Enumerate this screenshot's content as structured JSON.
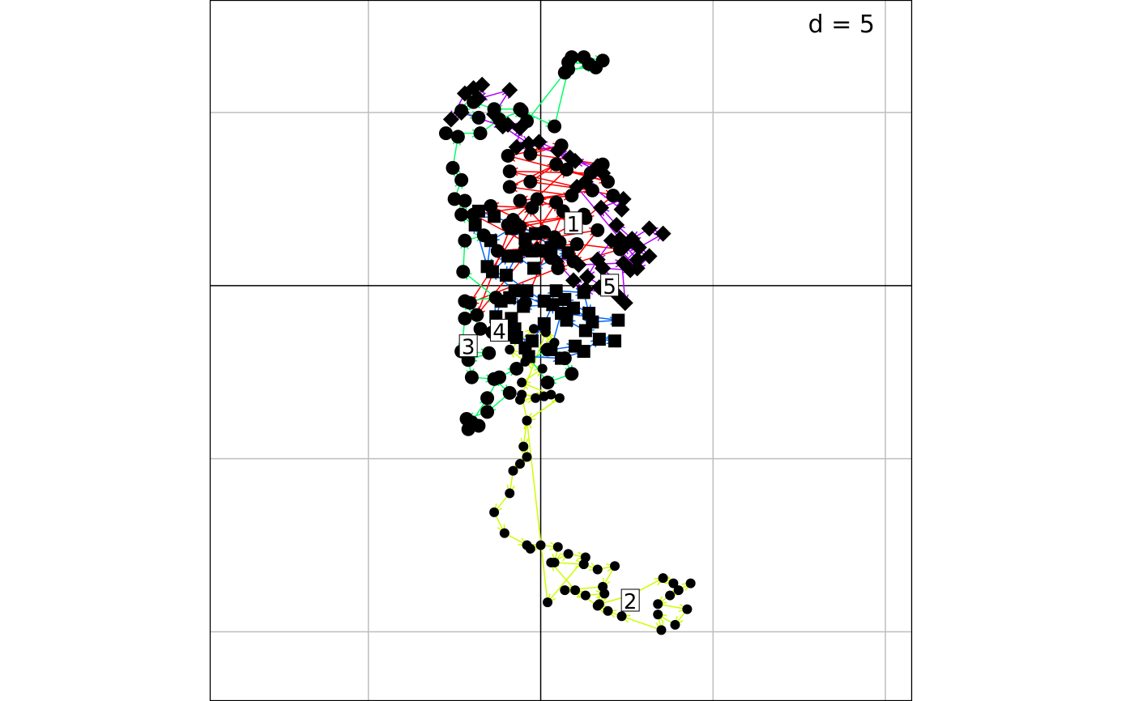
{
  "chart_data": {
    "type": "scatter",
    "subtype": "trajectory",
    "scale_label": "d = 5",
    "grid": true,
    "grid_color": "#bebebe",
    "axes_color": "#000000",
    "point_color": "#000000",
    "xlim": [
      -19.2,
      21.5
    ],
    "ylim": [
      -24,
      16.5
    ],
    "gridlines_x": [
      -10,
      0,
      10,
      20
    ],
    "gridlines_y": [
      -20,
      -10,
      0,
      10
    ],
    "groups": [
      {
        "label": "1",
        "color": "#ff0000",
        "marker": "circle",
        "label_pos": [
          1.9,
          3.6
        ],
        "points": [
          [
            -0.9,
            -1.0
          ],
          [
            1.3,
            4.3
          ],
          [
            -0.2,
            5.0
          ],
          [
            1.8,
            5.2
          ],
          [
            -1.8,
            5.7
          ],
          [
            0.9,
            7.0
          ],
          [
            -0.6,
            6.0
          ],
          [
            3.0,
            5.5
          ],
          [
            -1.2,
            4.9
          ],
          [
            1.1,
            2.5
          ],
          [
            -1.2,
            3.4
          ],
          [
            2.5,
            4.1
          ],
          [
            -1.9,
            3.5
          ],
          [
            0.6,
            1.6
          ],
          [
            -2.5,
            2.0
          ],
          [
            2.1,
            2.4
          ],
          [
            4.6,
            2.1
          ],
          [
            1.0,
            1.0
          ],
          [
            -4.1,
            -1.0
          ],
          [
            -0.5,
            4.5
          ],
          [
            -2.9,
            4.6
          ],
          [
            0.8,
            2.8
          ],
          [
            3.3,
            3.2
          ],
          [
            1.9,
            1.4
          ],
          [
            0.2,
            3.1
          ],
          [
            -3.7,
            -1.7
          ],
          [
            -1.6,
            3.8
          ],
          [
            1.5,
            6.7
          ],
          [
            3.9,
            6.0
          ],
          [
            -1.9,
            7.5
          ],
          [
            1.2,
            8.1
          ],
          [
            -0.6,
            7.6
          ],
          [
            3.6,
            7.0
          ],
          [
            2.9,
            6.5
          ],
          [
            -1.8,
            6.6
          ],
          [
            4.2,
            5.2
          ],
          [
            2.6,
            3.9
          ],
          [
            -0.9,
            2.1
          ],
          [
            0.9,
            4.8
          ],
          [
            -3.9,
            4.1
          ],
          [
            0.1,
            2.0
          ]
        ]
      },
      {
        "label": "2",
        "color": "#ccff00",
        "marker": "circle_small",
        "label_pos": [
          5.2,
          -18.2
        ],
        "points": [
          [
            0.6,
            -6.3
          ],
          [
            -1.1,
            -5.6
          ],
          [
            0.1,
            -4.8
          ],
          [
            -0.9,
            -4.4
          ],
          [
            -1.8,
            -3.7
          ],
          [
            -0.4,
            -2.5
          ],
          [
            0.8,
            -3.3
          ],
          [
            0.3,
            -2.7
          ],
          [
            -1.2,
            -6.6
          ],
          [
            -0.3,
            -6.5
          ],
          [
            1.1,
            -6.5
          ],
          [
            -0.8,
            -7.8
          ],
          [
            -1.0,
            -9.3
          ],
          [
            -0.8,
            -9.9
          ],
          [
            -1.2,
            -10.3
          ],
          [
            -1.6,
            -10.7
          ],
          [
            -1.8,
            -12.0
          ],
          [
            -2.7,
            -13.1
          ],
          [
            -2.1,
            -14.3
          ],
          [
            -0.8,
            -15.0
          ],
          [
            -0.6,
            -15.2
          ],
          [
            0.0,
            -15.0
          ],
          [
            1.0,
            -15.1
          ],
          [
            0.8,
            -16.0
          ],
          [
            2.5,
            -16.1
          ],
          [
            3.3,
            -16.4
          ],
          [
            4.3,
            -16.2
          ],
          [
            3.6,
            -17.4
          ],
          [
            1.4,
            -17.6
          ],
          [
            2.6,
            -17.9
          ],
          [
            3.7,
            -17.8
          ],
          [
            3.4,
            -18.4
          ],
          [
            5.2,
            -17.9
          ],
          [
            7.1,
            -16.9
          ],
          [
            7.7,
            -17.2
          ],
          [
            8.0,
            -17.6
          ],
          [
            8.7,
            -17.2
          ],
          [
            7.5,
            -17.9
          ],
          [
            6.8,
            -18.4
          ],
          [
            8.5,
            -18.7
          ],
          [
            7.8,
            -19.6
          ],
          [
            6.8,
            -19.0
          ],
          [
            7.0,
            -19.9
          ],
          [
            4.7,
            -19.1
          ],
          [
            3.9,
            -18.8
          ],
          [
            3.3,
            -18.5
          ],
          [
            2.0,
            -17.6
          ],
          [
            0.6,
            -16.0
          ],
          [
            1.6,
            -15.5
          ],
          [
            2.6,
            -15.7
          ],
          [
            0.4,
            -18.3
          ],
          [
            -0.8,
            -7.8
          ],
          [
            -1.1,
            -6.3
          ],
          [
            0.2,
            -6.4
          ]
        ]
      },
      {
        "label": "3",
        "color": "#00ff66",
        "marker": "circle",
        "label_pos": [
          -4.2,
          -3.5
        ],
        "points": [
          [
            -4.4,
            -1.9
          ],
          [
            -4.6,
            -3.8
          ],
          [
            -3.0,
            -3.9
          ],
          [
            -4.2,
            -4.3
          ],
          [
            -4.0,
            -5.3
          ],
          [
            -2.7,
            -5.4
          ],
          [
            -1.8,
            -6.2
          ],
          [
            -3.1,
            -7.3
          ],
          [
            -4.3,
            -7.7
          ],
          [
            -3.6,
            -8.1
          ],
          [
            -4.2,
            -8.3
          ],
          [
            -4.0,
            -7.9
          ],
          [
            -3.1,
            -6.5
          ],
          [
            -2.4,
            -5.3
          ],
          [
            -1.4,
            -4.8
          ],
          [
            0.4,
            -3.7
          ],
          [
            1.4,
            -4.2
          ],
          [
            1.8,
            -5.1
          ],
          [
            0.4,
            -5.6
          ],
          [
            -1.6,
            -2.9
          ],
          [
            -2.8,
            -2.7
          ],
          [
            -3.5,
            -2.5
          ],
          [
            -4.4,
            -0.9
          ],
          [
            -2.6,
            -0.7
          ],
          [
            -4.5,
            0.8
          ],
          [
            -4.4,
            2.6
          ],
          [
            -3.3,
            2.9
          ],
          [
            -4.6,
            4.1
          ],
          [
            -4.4,
            4.9
          ],
          [
            -5.0,
            5.0
          ],
          [
            -4.6,
            6.1
          ],
          [
            -5.1,
            6.8
          ],
          [
            -4.8,
            8.6
          ],
          [
            -5.5,
            8.8
          ],
          [
            -3.5,
            8.8
          ],
          [
            -2.4,
            9.6
          ],
          [
            -1.1,
            10.1
          ],
          [
            0.8,
            9.2
          ],
          [
            1.6,
            12.5
          ],
          [
            3.2,
            12.6
          ],
          [
            1.8,
            13.2
          ],
          [
            1.6,
            12.9
          ],
          [
            2.8,
            12.8
          ],
          [
            2.5,
            13.2
          ],
          [
            3.6,
            13.0
          ],
          [
            1.4,
            12.3
          ],
          [
            -0.8,
            9.5
          ],
          [
            -1.2,
            10.2
          ],
          [
            -2.7,
            10.2
          ],
          [
            -3.9,
            10.6
          ],
          [
            -4.6,
            10.1
          ],
          [
            -3.6,
            9.7
          ]
        ]
      },
      {
        "label": "4",
        "color": "#0066ff",
        "marker": "square",
        "label_pos": [
          -2.4,
          -2.6
        ],
        "points": [
          [
            -1.7,
            -1.9
          ],
          [
            -1.4,
            -3.0
          ],
          [
            -0.5,
            -3.2
          ],
          [
            0.2,
            -2.2
          ],
          [
            0.7,
            -1.1
          ],
          [
            -1.0,
            -1.2
          ],
          [
            -1.8,
            -0.7
          ],
          [
            -2.3,
            -0.9
          ],
          [
            -2.6,
            -1.8
          ],
          [
            -1.5,
            -2.5
          ],
          [
            -0.9,
            -3.6
          ],
          [
            -0.7,
            -4.1
          ],
          [
            1.2,
            -4.2
          ],
          [
            2.5,
            -3.8
          ],
          [
            3.4,
            -3.1
          ],
          [
            4.3,
            -3.2
          ],
          [
            2.6,
            -2.6
          ],
          [
            1.5,
            -2.0
          ],
          [
            1.9,
            -1.3
          ],
          [
            3.0,
            -2.1
          ],
          [
            4.5,
            -2.0
          ],
          [
            1.2,
            -1.6
          ],
          [
            -1.5,
            -0.3
          ],
          [
            -2.8,
            0.8
          ],
          [
            -1.9,
            1.7
          ],
          [
            -0.5,
            2.0
          ],
          [
            -0.9,
            2.7
          ],
          [
            -1.7,
            3.3
          ],
          [
            -2.9,
            2.6
          ],
          [
            -3.1,
            1.1
          ],
          [
            -3.8,
            3.5
          ],
          [
            -3.6,
            4.3
          ],
          [
            -2.7,
            4.0
          ],
          [
            -1.5,
            3.5
          ],
          [
            -0.3,
            3.0
          ],
          [
            0.6,
            2.2
          ],
          [
            1.6,
            1.9
          ],
          [
            -0.4,
            1.0
          ],
          [
            -1.4,
            1.7
          ],
          [
            -2.0,
            0.6
          ],
          [
            -0.8,
            -0.3
          ],
          [
            0.2,
            -0.9
          ],
          [
            0.9,
            -0.3
          ],
          [
            2.5,
            -0.4
          ],
          [
            2.8,
            -1.6
          ],
          [
            1.4,
            -0.8
          ],
          [
            0.6,
            -3.7
          ],
          [
            2.0,
            -3.5
          ]
        ]
      },
      {
        "label": "5",
        "color": "#b200ff",
        "marker": "diamond",
        "label_pos": [
          4.0,
          0.0
        ],
        "points": [
          [
            4.0,
            0.0
          ],
          [
            3.6,
            1.0
          ],
          [
            5.2,
            0.9
          ],
          [
            5.6,
            1.5
          ],
          [
            4.9,
            2.3
          ],
          [
            6.3,
            1.7
          ],
          [
            5.6,
            1.0
          ],
          [
            4.1,
            2.6
          ],
          [
            3.3,
            1.5
          ],
          [
            2.7,
            0.5
          ],
          [
            4.5,
            -0.6
          ],
          [
            2.6,
            -0.2
          ],
          [
            1.9,
            0.3
          ],
          [
            0.9,
            1.4
          ],
          [
            -0.2,
            2.1
          ],
          [
            2.2,
            1.2
          ],
          [
            4.8,
            1.3
          ],
          [
            5.7,
            2.2
          ],
          [
            7.1,
            3.0
          ],
          [
            6.3,
            3.3
          ],
          [
            5.3,
            2.7
          ],
          [
            4.4,
            3.5
          ],
          [
            3.5,
            4.5
          ],
          [
            4.8,
            5.0
          ],
          [
            4.7,
            4.4
          ],
          [
            2.6,
            6.0
          ],
          [
            3.3,
            6.9
          ],
          [
            2.0,
            7.2
          ],
          [
            1.0,
            7.8
          ],
          [
            -0.1,
            8.3
          ],
          [
            -1.4,
            8.0
          ],
          [
            -1.2,
            9.1
          ],
          [
            -1.9,
            9.3
          ],
          [
            -2.7,
            9.9
          ],
          [
            -1.8,
            11.3
          ],
          [
            -3.6,
            10.8
          ],
          [
            -3.4,
            11.6
          ],
          [
            -3.9,
            11.4
          ],
          [
            -4.4,
            11.1
          ],
          [
            -5.2,
            9.6
          ],
          [
            -4.6,
            10.0
          ],
          [
            -2.2,
            9.2
          ],
          [
            -0.7,
            8.2
          ],
          [
            1.7,
            7.4
          ],
          [
            3.6,
            6.5
          ],
          [
            2.1,
            5.7
          ],
          [
            4.6,
            2.7
          ],
          [
            4.9,
            -1.0
          ],
          [
            3.4,
            -0.1
          ]
        ]
      }
    ]
  }
}
